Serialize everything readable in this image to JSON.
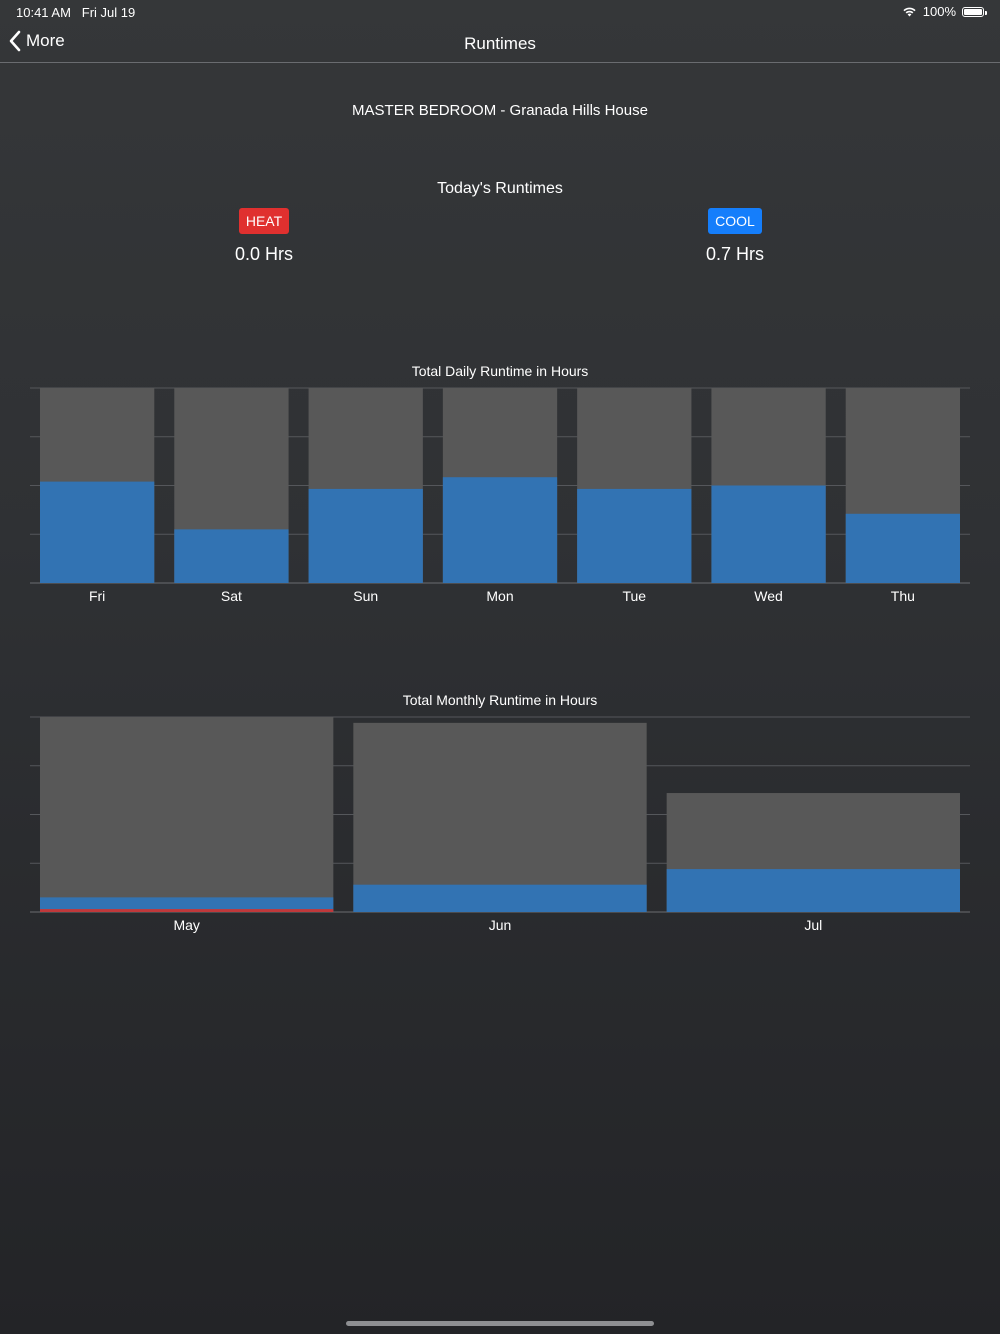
{
  "status_bar": {
    "time": "10:41 AM",
    "date": "Fri Jul 19",
    "battery": "100%",
    "wifi_icon": "wifi-icon",
    "battery_icon": "battery-icon"
  },
  "nav": {
    "back_label": "More",
    "title": "Runtimes"
  },
  "location": "MASTER BEDROOM - Granada Hills House",
  "today": {
    "title": "Today's Runtimes",
    "heat": {
      "label": "HEAT",
      "value": "0.0 Hrs",
      "color": "#e0302f"
    },
    "cool": {
      "label": "COOL",
      "value": "0.7 Hrs",
      "color": "#157efb"
    }
  },
  "colors": {
    "cool": "#3273b3",
    "heat": "#c0393b",
    "total": "#585858",
    "grid": "#55575b"
  },
  "chart_data": [
    {
      "type": "bar",
      "title": "Total Daily Runtime in Hours",
      "categories": [
        "Fri",
        "Sat",
        "Sun",
        "Mon",
        "Tue",
        "Wed",
        "Thu"
      ],
      "series": [
        {
          "name": "Total",
          "values": [
            4.0,
            4.0,
            4.0,
            4.0,
            4.0,
            4.0,
            4.0
          ]
        },
        {
          "name": "Cool",
          "values": [
            2.08,
            1.1,
            1.93,
            2.17,
            1.93,
            2.0,
            1.42
          ]
        },
        {
          "name": "Heat",
          "values": [
            0,
            0,
            0,
            0,
            0,
            0,
            0
          ]
        }
      ],
      "ylim": [
        0,
        4
      ],
      "grid": true
    },
    {
      "type": "bar",
      "title": "Total Monthly Runtime in Hours",
      "categories": [
        "May",
        "Jun",
        "Jul"
      ],
      "series": [
        {
          "name": "Total",
          "values": [
            100,
            97,
            61
          ]
        },
        {
          "name": "Cool",
          "values": [
            7.5,
            14,
            22
          ]
        },
        {
          "name": "Heat",
          "values": [
            1.5,
            0,
            0
          ]
        }
      ],
      "ylim": [
        0,
        100
      ],
      "grid": true
    }
  ]
}
